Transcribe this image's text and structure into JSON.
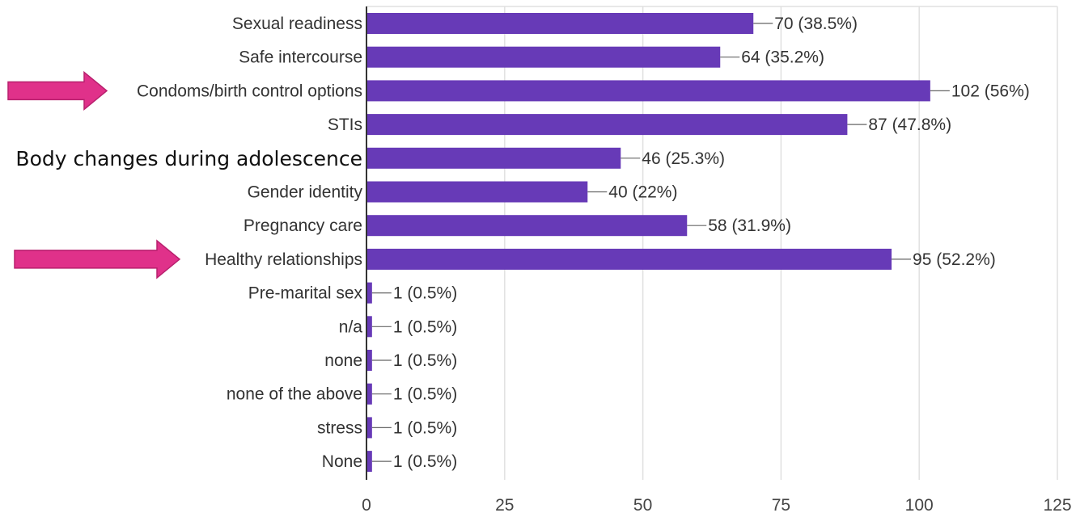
{
  "colors": {
    "bar": "#673ab7",
    "arrow": "#e0318a",
    "arrow_border": "#b8206e",
    "grid": "#e0e0e0",
    "axis": "#333333"
  },
  "chart_data": {
    "type": "bar",
    "orientation": "horizontal",
    "categories": [
      "Sexual readiness",
      "Safe intercourse",
      "Condoms/birth control options",
      "STIs",
      "Body changes during adolescence",
      "Gender identity",
      "Pregnancy care",
      "Healthy relationships",
      "Pre-marital sex",
      "n/a",
      "none",
      "none of the above",
      "stress",
      "None"
    ],
    "values": [
      70,
      64,
      102,
      87,
      46,
      40,
      58,
      95,
      1,
      1,
      1,
      1,
      1,
      1
    ],
    "value_labels": [
      "70 (38.5%)",
      "64 (35.2%)",
      "102 (56%)",
      "87 (47.8%)",
      "46 (25.3%)",
      "40 (22%)",
      "58 (31.9%)",
      "95 (52.2%)",
      "1 (0.5%)",
      "1 (0.5%)",
      "1 (0.5%)",
      "1 (0.5%)",
      "1 (0.5%)",
      "1 (0.5%)"
    ],
    "emphasized_category": "Body changes during adolescence",
    "arrow_marked_categories": [
      "Condoms/birth control options",
      "Healthy relationships"
    ],
    "xlim": [
      0,
      125
    ],
    "xticks": [
      0,
      25,
      50,
      75,
      100,
      125
    ],
    "grid": true,
    "title": "",
    "xlabel": "",
    "ylabel": ""
  }
}
